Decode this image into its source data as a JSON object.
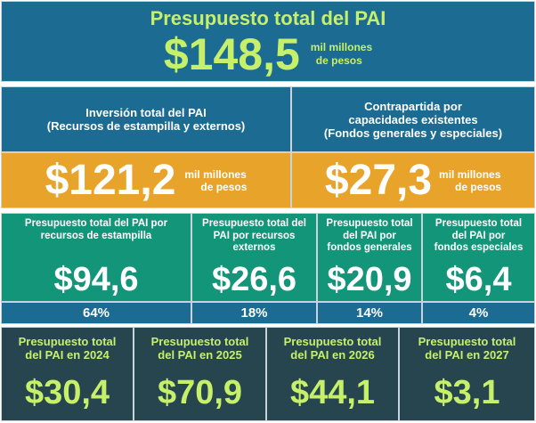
{
  "total": {
    "title": "Presupuesto total del PAI",
    "amount": "$148,5",
    "unit_line1": "mil millones",
    "unit_line2": "de pesos"
  },
  "inversion": {
    "title_line1": "Inversión total del PAI",
    "title_line2": "(Recursos de estampilla y externos)",
    "amount": "$121,2",
    "unit_line1": "mil millones",
    "unit_line2": "de pesos"
  },
  "contrapartida": {
    "title_line1": "Contrapartida por",
    "title_line2": "capacidades existentes",
    "title_line3": "(Fondos generales y especiales)",
    "amount": "$27,3",
    "unit_line1": "mil millones",
    "unit_line2": "de pesos"
  },
  "breakdown": [
    {
      "title": "Presupuesto total del PAI por recursos de estampilla",
      "amount": "$94,6",
      "percent": "64%"
    },
    {
      "title": "Presupuesto total del PAI por recursos externos",
      "amount": "$26,6",
      "percent": "18%"
    },
    {
      "title": "Presupuesto total del PAI por fondos generales",
      "amount": "$20,9",
      "percent": "14%"
    },
    {
      "title": "Presupuesto total del PAI por fondos especiales",
      "amount": "$6,4",
      "percent": "4%"
    }
  ],
  "years": [
    {
      "title_line1": "Presupuesto total",
      "title_line2": "del PAI en 2024",
      "amount": "$30,4"
    },
    {
      "title_line1": "Presupuesto total",
      "title_line2": "del PAI en 2025",
      "amount": "$70,9"
    },
    {
      "title_line1": "Presupuesto total",
      "title_line2": "del PAI en 2026",
      "amount": "$44,1"
    },
    {
      "title_line1": "Presupuesto total",
      "title_line2": "del PAI en 2027",
      "amount": "$3,1"
    }
  ],
  "colors": {
    "blue": "#1b6b93",
    "orange": "#e8a32b",
    "green": "#139579",
    "dark": "#27454f",
    "accent_green": "#c6f06a"
  }
}
